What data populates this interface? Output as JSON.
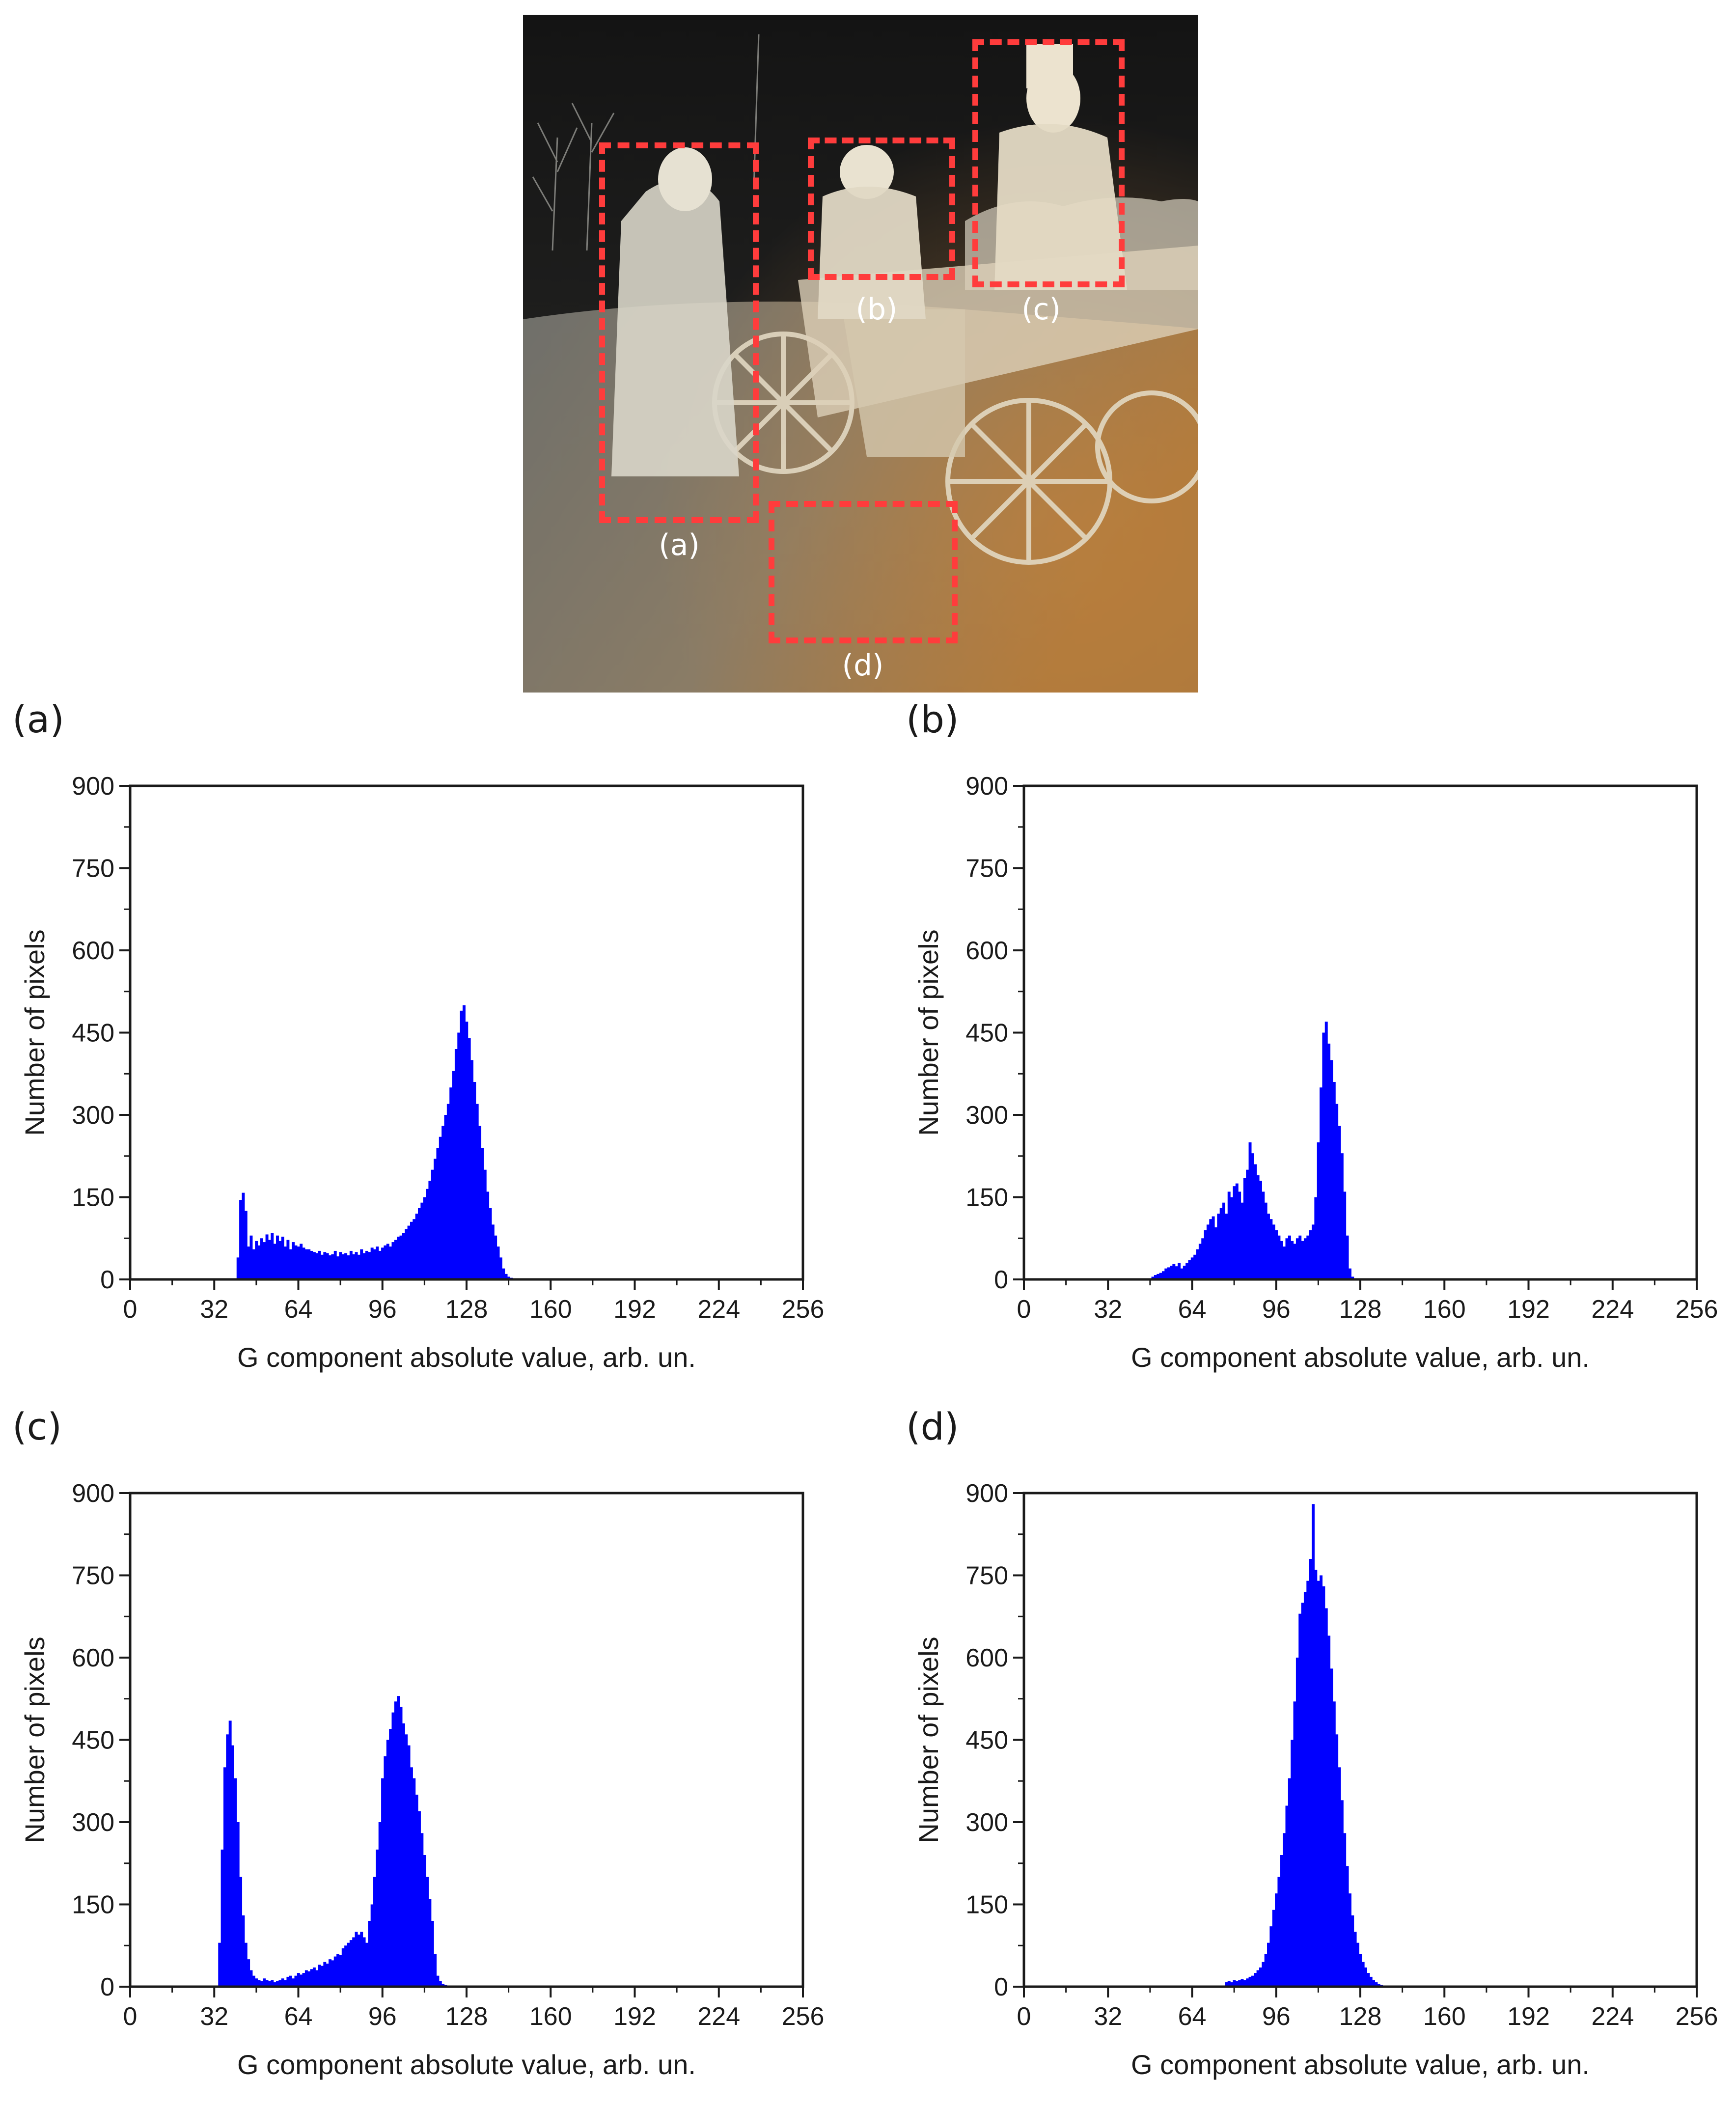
{
  "photo": {
    "regions": [
      {
        "label": "(a)"
      },
      {
        "label": "(b)"
      },
      {
        "label": "(c)"
      },
      {
        "label": "(d)"
      }
    ],
    "roi_color": "#ff3c3c"
  },
  "chart_data": [
    {
      "panel": "(a)",
      "type": "bar",
      "title": "",
      "xlabel": "G component absolute value, arb. un.",
      "ylabel": "Number of pixels",
      "xlim": [
        0,
        256
      ],
      "ylim": [
        0,
        900
      ],
      "xticks": [
        0,
        32,
        64,
        96,
        128,
        160,
        192,
        224,
        256
      ],
      "yticks": [
        0,
        150,
        300,
        450,
        600,
        750,
        900
      ],
      "color": "#0000ff",
      "x": [
        41,
        42,
        43,
        44,
        45,
        46,
        47,
        48,
        49,
        50,
        51,
        52,
        53,
        54,
        55,
        56,
        57,
        58,
        59,
        60,
        61,
        62,
        63,
        64,
        65,
        66,
        67,
        68,
        69,
        70,
        71,
        72,
        73,
        74,
        75,
        76,
        77,
        78,
        79,
        80,
        81,
        82,
        83,
        84,
        85,
        86,
        87,
        88,
        89,
        90,
        91,
        92,
        93,
        94,
        95,
        96,
        97,
        98,
        99,
        100,
        101,
        102,
        103,
        104,
        105,
        106,
        107,
        108,
        109,
        110,
        111,
        112,
        113,
        114,
        115,
        116,
        117,
        118,
        119,
        120,
        121,
        122,
        123,
        124,
        125,
        126,
        127,
        128,
        129,
        130,
        131,
        132,
        133,
        134,
        135,
        136,
        137,
        138,
        139,
        140,
        141,
        142,
        143,
        144,
        145,
        146,
        147,
        148,
        149,
        150,
        151,
        152
      ],
      "values": [
        40,
        145,
        158,
        125,
        60,
        80,
        55,
        70,
        62,
        75,
        68,
        82,
        72,
        85,
        65,
        80,
        70,
        78,
        60,
        72,
        55,
        68,
        62,
        60,
        65,
        58,
        55,
        55,
        52,
        50,
        48,
        52,
        45,
        50,
        48,
        44,
        46,
        52,
        42,
        50,
        46,
        48,
        44,
        52,
        46,
        50,
        45,
        55,
        48,
        52,
        50,
        58,
        55,
        60,
        52,
        58,
        62,
        65,
        60,
        68,
        72,
        78,
        80,
        85,
        92,
        98,
        105,
        110,
        120,
        130,
        140,
        150,
        165,
        180,
        200,
        220,
        240,
        260,
        280,
        300,
        320,
        350,
        380,
        420,
        450,
        490,
        500,
        470,
        440,
        400,
        360,
        320,
        280,
        240,
        200,
        160,
        130,
        100,
        80,
        60,
        40,
        20,
        10,
        5,
        3,
        2,
        1,
        1,
        0,
        0,
        0,
        0
      ]
    },
    {
      "panel": "(b)",
      "type": "bar",
      "title": "",
      "xlabel": "G component absolute value, arb. un.",
      "ylabel": "Number of pixels",
      "xlim": [
        0,
        256
      ],
      "ylim": [
        0,
        900
      ],
      "xticks": [
        0,
        32,
        64,
        96,
        128,
        160,
        192,
        224,
        256
      ],
      "yticks": [
        0,
        150,
        300,
        450,
        600,
        750,
        900
      ],
      "color": "#0000ff",
      "x": [
        49,
        50,
        51,
        52,
        53,
        54,
        55,
        56,
        57,
        58,
        59,
        60,
        61,
        62,
        63,
        64,
        65,
        66,
        67,
        68,
        69,
        70,
        71,
        72,
        73,
        74,
        75,
        76,
        77,
        78,
        79,
        80,
        81,
        82,
        83,
        84,
        85,
        86,
        87,
        88,
        89,
        90,
        91,
        92,
        93,
        94,
        95,
        96,
        97,
        98,
        99,
        100,
        101,
        102,
        103,
        104,
        105,
        106,
        107,
        108,
        109,
        110,
        111,
        112,
        113,
        114,
        115,
        116,
        117,
        118,
        119,
        120,
        121,
        122,
        123,
        124,
        125,
        126,
        127,
        128,
        129,
        130,
        131,
        132
      ],
      "values": [
        5,
        8,
        10,
        12,
        15,
        20,
        22,
        25,
        28,
        24,
        30,
        20,
        25,
        30,
        35,
        40,
        45,
        55,
        65,
        75,
        90,
        100,
        110,
        115,
        95,
        120,
        130,
        140,
        120,
        160,
        150,
        170,
        175,
        160,
        140,
        185,
        200,
        250,
        230,
        210,
        190,
        180,
        160,
        140,
        120,
        110,
        100,
        90,
        80,
        70,
        60,
        75,
        80,
        70,
        65,
        75,
        80,
        70,
        75,
        80,
        90,
        100,
        150,
        250,
        350,
        450,
        470,
        430,
        400,
        360,
        320,
        280,
        230,
        160,
        80,
        20,
        5,
        0,
        0,
        0,
        0,
        0,
        0,
        0
      ]
    },
    {
      "panel": "(c)",
      "type": "bar",
      "title": "",
      "xlabel": "G component absolute value, arb. un.",
      "ylabel": "Number of pixels",
      "xlim": [
        0,
        256
      ],
      "ylim": [
        0,
        900
      ],
      "xticks": [
        0,
        32,
        64,
        96,
        128,
        160,
        192,
        224,
        256
      ],
      "yticks": [
        0,
        150,
        300,
        450,
        600,
        750,
        900
      ],
      "color": "#0000ff",
      "x": [
        34,
        35,
        36,
        37,
        38,
        39,
        40,
        41,
        42,
        43,
        44,
        45,
        46,
        47,
        48,
        49,
        50,
        51,
        52,
        53,
        54,
        55,
        56,
        57,
        58,
        59,
        60,
        61,
        62,
        63,
        64,
        65,
        66,
        67,
        68,
        69,
        70,
        71,
        72,
        73,
        74,
        75,
        76,
        77,
        78,
        79,
        80,
        81,
        82,
        83,
        84,
        85,
        86,
        87,
        88,
        89,
        90,
        91,
        92,
        93,
        94,
        95,
        96,
        97,
        98,
        99,
        100,
        101,
        102,
        103,
        104,
        105,
        106,
        107,
        108,
        109,
        110,
        111,
        112,
        113,
        114,
        115,
        116,
        117,
        118,
        119,
        120,
        121,
        122,
        123,
        124,
        125,
        126,
        127,
        128,
        129,
        130,
        131,
        132,
        133,
        134,
        135
      ],
      "values": [
        80,
        250,
        400,
        460,
        485,
        440,
        380,
        300,
        200,
        130,
        80,
        50,
        30,
        20,
        15,
        12,
        10,
        15,
        12,
        10,
        12,
        8,
        10,
        12,
        15,
        12,
        18,
        20,
        15,
        20,
        25,
        22,
        25,
        30,
        28,
        32,
        35,
        30,
        40,
        38,
        45,
        42,
        50,
        48,
        55,
        60,
        58,
        70,
        75,
        80,
        85,
        90,
        100,
        95,
        100,
        90,
        80,
        120,
        150,
        200,
        250,
        300,
        380,
        420,
        450,
        470,
        500,
        520,
        530,
        510,
        480,
        460,
        440,
        400,
        380,
        350,
        320,
        280,
        240,
        200,
        160,
        120,
        60,
        20,
        10,
        5,
        3,
        2,
        1,
        0,
        0,
        0,
        0,
        0,
        0,
        0,
        0,
        0,
        0,
        0,
        0,
        0
      ]
    },
    {
      "panel": "(d)",
      "type": "bar",
      "title": "",
      "xlabel": "G component absolute value, arb. un.",
      "ylabel": "Number of pixels",
      "xlim": [
        0,
        256
      ],
      "ylim": [
        0,
        900
      ],
      "xticks": [
        0,
        32,
        64,
        96,
        128,
        160,
        192,
        224,
        256
      ],
      "yticks": [
        0,
        150,
        300,
        450,
        600,
        750,
        900
      ],
      "color": "#0000ff",
      "x": [
        77,
        78,
        79,
        80,
        81,
        82,
        83,
        84,
        85,
        86,
        87,
        88,
        89,
        90,
        91,
        92,
        93,
        94,
        95,
        96,
        97,
        98,
        99,
        100,
        101,
        102,
        103,
        104,
        105,
        106,
        107,
        108,
        109,
        110,
        111,
        112,
        113,
        114,
        115,
        116,
        117,
        118,
        119,
        120,
        121,
        122,
        123,
        124,
        125,
        126,
        127,
        128,
        129,
        130,
        131,
        132,
        133,
        134,
        135,
        136,
        137,
        138,
        139,
        140,
        141,
        142,
        143,
        144,
        145
      ],
      "values": [
        8,
        10,
        8,
        12,
        10,
        12,
        14,
        12,
        15,
        18,
        20,
        25,
        30,
        35,
        45,
        60,
        80,
        110,
        140,
        170,
        200,
        240,
        280,
        330,
        380,
        450,
        520,
        600,
        680,
        700,
        720,
        740,
        780,
        880,
        760,
        740,
        750,
        730,
        690,
        640,
        580,
        520,
        460,
        400,
        340,
        280,
        220,
        170,
        130,
        100,
        80,
        60,
        45,
        35,
        25,
        18,
        12,
        8,
        5,
        3,
        2,
        1,
        0,
        0,
        0,
        0,
        0,
        0,
        0
      ]
    }
  ]
}
